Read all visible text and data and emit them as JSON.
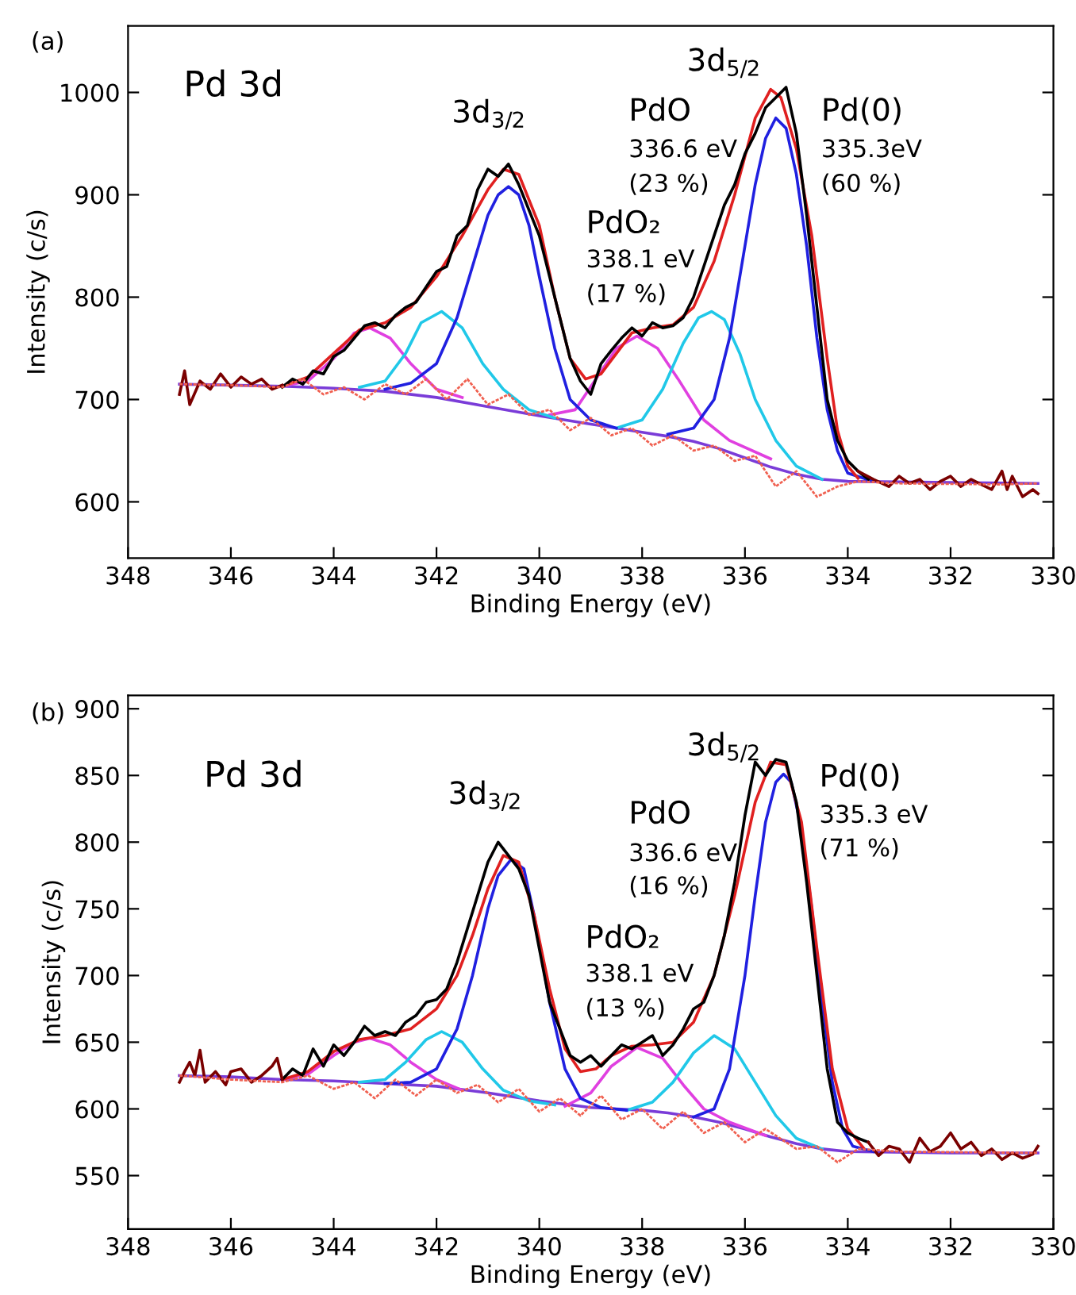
{
  "chart_data": [
    {
      "type": "line",
      "xlabel": "Binding Energy (eV)",
      "ylabel": "Intensity (c/s)",
      "xlim": [
        348,
        330
      ],
      "ylim": [
        545,
        1065
      ],
      "xticks": [
        348,
        346,
        344,
        342,
        340,
        338,
        336,
        334,
        332,
        330
      ],
      "yticks": [
        600,
        700,
        800,
        900,
        1000
      ],
      "grid": false,
      "legend": false,
      "annotations": [
        "(a)",
        "Pd 3d",
        "3d$_{3/2}$",
        "PdO₂",
        "338.1 eV",
        "(17 %)",
        "PdO",
        "336.6 eV",
        "(23 %)",
        "3d$_{5/2}$",
        "Pd(0)",
        "335.3eV",
        "(60 %)"
      ],
      "series": [
        {
          "color": "#f06050",
          "line_style": "dotted",
          "x": [
            347,
            346,
            345,
            344.6,
            344.2,
            343.8,
            343.4,
            343,
            342.6,
            342.2,
            341.8,
            341.4,
            341,
            340.6,
            340.2,
            339.8,
            339.4,
            339,
            338.6,
            338.2,
            337.8,
            337.4,
            337,
            336.6,
            336.2,
            335.8,
            335.4,
            335,
            334.6,
            334.2,
            333.8,
            333,
            331,
            330.3
          ],
          "values": [
            715,
            714,
            712,
            720,
            705,
            712,
            700,
            715,
            705,
            720,
            700,
            720,
            695,
            705,
            685,
            690,
            670,
            682,
            665,
            672,
            655,
            665,
            650,
            655,
            640,
            645,
            615,
            630,
            605,
            615,
            620,
            618,
            617,
            618
          ]
        },
        {
          "color": "#7a3cd8",
          "x": [
            347,
            346,
            345,
            344,
            343,
            342,
            341,
            340,
            339,
            338,
            337.5,
            337,
            336.5,
            336,
            335.5,
            335,
            334.5,
            334,
            332,
            330.3
          ],
          "values": [
            715,
            714,
            713,
            711,
            708,
            702,
            693,
            684,
            676,
            668,
            664,
            659,
            652,
            643,
            634,
            627,
            622,
            620,
            619,
            618
          ]
        },
        {
          "color": "#e040e0",
          "x": [
            345,
            344.5,
            344,
            343.6,
            343.3,
            342.9,
            342.5,
            342,
            341.5
          ],
          "values": [
            713,
            718,
            740,
            765,
            770,
            760,
            735,
            710,
            702
          ]
        },
        {
          "color": "#e040e0",
          "x": [
            339.8,
            339.3,
            338.9,
            338.5,
            338.1,
            337.7,
            337.3,
            336.8,
            336.3,
            335.5
          ],
          "values": [
            685,
            690,
            720,
            750,
            762,
            750,
            720,
            680,
            660,
            642
          ]
        },
        {
          "color": "#20c8e8",
          "x": [
            343.5,
            343,
            342.6,
            342.3,
            341.9,
            341.5,
            341.1,
            340.7,
            340.2,
            339.7
          ],
          "values": [
            712,
            718,
            745,
            775,
            786,
            770,
            735,
            710,
            690,
            682
          ]
        },
        {
          "color": "#20c8e8",
          "x": [
            338.5,
            338,
            337.6,
            337.2,
            336.9,
            336.65,
            336.4,
            336.1,
            335.8,
            335.4,
            335,
            334.5
          ],
          "values": [
            672,
            680,
            710,
            755,
            780,
            786,
            778,
            745,
            700,
            660,
            635,
            622
          ]
        },
        {
          "color": "#2020e0",
          "x": [
            343,
            342.5,
            342,
            341.6,
            341.3,
            341,
            340.8,
            340.6,
            340.4,
            340.2,
            340,
            339.7,
            339.4,
            339,
            338.5
          ],
          "values": [
            710,
            716,
            735,
            780,
            830,
            880,
            900,
            908,
            900,
            870,
            820,
            750,
            700,
            680,
            672
          ]
        },
        {
          "color": "#2020e0",
          "x": [
            337.5,
            337,
            336.6,
            336.3,
            336,
            335.8,
            335.6,
            335.4,
            335.2,
            335,
            334.8,
            334.6,
            334.4,
            334.2,
            334,
            333.5
          ],
          "values": [
            666,
            672,
            700,
            760,
            850,
            910,
            955,
            975,
            965,
            920,
            850,
            760,
            690,
            650,
            628,
            620
          ]
        },
        {
          "color": "#e02020",
          "x": [
            345,
            344.5,
            344,
            343.5,
            343,
            342.5,
            342,
            341.5,
            341,
            340.7,
            340.4,
            340,
            339.7,
            339.4,
            339.1,
            338.8,
            338.5,
            338.2,
            337.8,
            337.4,
            337,
            336.6,
            336.2,
            335.8,
            335.5,
            335.3,
            335,
            334.7,
            334.4,
            334.2,
            334,
            333.8
          ],
          "values": [
            713,
            722,
            745,
            768,
            775,
            790,
            820,
            860,
            905,
            925,
            920,
            870,
            800,
            740,
            720,
            725,
            745,
            765,
            770,
            773,
            790,
            835,
            900,
            975,
            1003,
            995,
            945,
            860,
            740,
            670,
            635,
            623
          ]
        },
        {
          "color": "#000000",
          "x": [
            345,
            344.8,
            344.6,
            344.4,
            344.2,
            344,
            343.8,
            343.6,
            343.4,
            343.2,
            343,
            342.8,
            342.6,
            342.4,
            342.2,
            342,
            341.8,
            341.6,
            341.4,
            341.2,
            341,
            340.8,
            340.6,
            340.4,
            340.2,
            340,
            339.8,
            339.6,
            339.4,
            339.2,
            339,
            338.8,
            338.6,
            338.4,
            338.2,
            338,
            337.8,
            337.6,
            337.4,
            337.2,
            337,
            336.8,
            336.6,
            336.4,
            336.2,
            336,
            335.8,
            335.6,
            335.4,
            335.2,
            335,
            334.8,
            334.6,
            334.4,
            334.2,
            334,
            333.8,
            333.6
          ],
          "values": [
            712,
            720,
            715,
            728,
            725,
            742,
            748,
            760,
            772,
            775,
            770,
            782,
            790,
            795,
            810,
            825,
            830,
            860,
            870,
            905,
            925,
            918,
            930,
            910,
            885,
            860,
            820,
            780,
            740,
            718,
            705,
            735,
            748,
            760,
            770,
            762,
            775,
            770,
            772,
            780,
            800,
            830,
            860,
            890,
            910,
            940,
            960,
            985,
            995,
            1005,
            960,
            880,
            790,
            700,
            660,
            640,
            630,
            622
          ]
        },
        {
          "color": "#7a0000",
          "x": [
            347,
            346.9,
            346.8,
            346.6,
            346.4,
            346.2,
            346,
            345.8,
            345.6,
            345.4,
            345.2,
            345
          ],
          "values": [
            705,
            728,
            695,
            718,
            710,
            725,
            712,
            722,
            715,
            720,
            710,
            714
          ]
        },
        {
          "color": "#7a0000",
          "x": [
            333.8,
            333.5,
            333.2,
            333,
            332.8,
            332.6,
            332.4,
            332.2,
            332,
            331.8,
            331.6,
            331.4,
            331.2,
            331,
            330.9,
            330.8,
            330.6,
            330.4,
            330.3
          ],
          "values": [
            630,
            622,
            615,
            625,
            618,
            622,
            612,
            620,
            625,
            615,
            622,
            617,
            612,
            630,
            612,
            625,
            605,
            612,
            608
          ]
        }
      ]
    },
    {
      "type": "line",
      "xlabel": "Binding Energy (eV)",
      "ylabel": "Intensity (c/s)",
      "xlim": [
        348,
        330
      ],
      "ylim": [
        510,
        910
      ],
      "xticks": [
        348,
        346,
        344,
        342,
        340,
        338,
        336,
        334,
        332,
        330
      ],
      "yticks": [
        550,
        600,
        650,
        700,
        750,
        800,
        850,
        900
      ],
      "grid": false,
      "legend": false,
      "annotations": [
        "(b)",
        "Pd 3d",
        "3d$_{3/2}$",
        "PdO₂",
        "338.1 eV",
        "(13 %)",
        "PdO",
        "336.6 eV",
        "(16 %)",
        "3d$_{5/2}$",
        "Pd(0)",
        "335.3 eV",
        "(71 %)"
      ],
      "series": [
        {
          "color": "#f06050",
          "line_style": "dotted",
          "x": [
            347,
            346,
            345,
            344.5,
            344,
            343.6,
            343.2,
            342.8,
            342.4,
            342,
            341.6,
            341.2,
            340.8,
            340.4,
            340,
            339.6,
            339.2,
            338.8,
            338.4,
            338,
            337.6,
            337.2,
            336.8,
            336.4,
            336,
            335.6,
            335,
            334.6,
            334.2,
            333.8,
            333,
            330.3
          ],
          "values": [
            625,
            622,
            620,
            625,
            615,
            620,
            608,
            622,
            610,
            622,
            612,
            618,
            605,
            615,
            598,
            608,
            595,
            610,
            592,
            600,
            585,
            598,
            582,
            590,
            575,
            585,
            570,
            572,
            560,
            570,
            568,
            567
          ]
        },
        {
          "color": "#7a3cd8",
          "x": [
            347,
            346,
            345,
            344,
            343,
            342,
            341,
            340,
            339,
            338,
            337.5,
            337,
            336.5,
            336,
            335.5,
            335,
            334.5,
            334,
            332,
            330.3
          ],
          "values": [
            625,
            624,
            622,
            621,
            619,
            617,
            612,
            606,
            601,
            599,
            597,
            594,
            590,
            585,
            579,
            574,
            570,
            568,
            567,
            567
          ]
        },
        {
          "color": "#e040e0",
          "x": [
            345,
            344.5,
            344,
            343.6,
            343.3,
            342.9,
            342.5,
            342,
            341.5
          ],
          "values": [
            622,
            626,
            640,
            650,
            653,
            648,
            635,
            622,
            614
          ]
        },
        {
          "color": "#e040e0",
          "x": [
            339.5,
            339,
            338.6,
            338.1,
            337.6,
            337.2,
            336.8,
            336.3,
            335.6
          ],
          "values": [
            602,
            612,
            632,
            646,
            638,
            618,
            600,
            590,
            580
          ]
        },
        {
          "color": "#20c8e8",
          "x": [
            343.5,
            343,
            342.6,
            342.2,
            341.9,
            341.5,
            341.1,
            340.7,
            340.2,
            339.7
          ],
          "values": [
            620,
            622,
            635,
            652,
            658,
            650,
            630,
            614,
            606,
            603
          ]
        },
        {
          "color": "#20c8e8",
          "x": [
            338.3,
            337.8,
            337.4,
            337,
            336.6,
            336.2,
            335.8,
            335.4,
            335,
            334.5
          ],
          "values": [
            599,
            605,
            620,
            642,
            655,
            645,
            620,
            595,
            578,
            570
          ]
        },
        {
          "color": "#2020e0",
          "x": [
            343,
            342.5,
            342,
            341.6,
            341.3,
            341,
            340.8,
            340.55,
            340.3,
            340.1,
            339.8,
            339.5,
            339.2,
            338.8,
            338.3
          ],
          "values": [
            619,
            620,
            630,
            660,
            700,
            750,
            775,
            787,
            780,
            745,
            680,
            630,
            608,
            601,
            599
          ]
        },
        {
          "color": "#2020e0",
          "x": [
            337,
            336.6,
            336.3,
            336,
            335.8,
            335.6,
            335.4,
            335.25,
            335.1,
            334.9,
            334.7,
            334.5,
            334.3,
            334.1,
            333.9,
            333.5
          ],
          "values": [
            594,
            600,
            630,
            700,
            760,
            815,
            845,
            851,
            845,
            810,
            750,
            680,
            620,
            585,
            572,
            568
          ]
        },
        {
          "color": "#e02020",
          "x": [
            345,
            344.5,
            344,
            343.5,
            343,
            342.5,
            342,
            341.6,
            341.3,
            341,
            340.7,
            340.4,
            340.1,
            339.8,
            339.5,
            339.2,
            338.9,
            338.6,
            338.2,
            337.8,
            337.4,
            337,
            336.6,
            336.2,
            335.8,
            335.5,
            335.2,
            334.9,
            334.6,
            334.3,
            334,
            333.7
          ],
          "values": [
            622,
            628,
            643,
            652,
            655,
            660,
            675,
            700,
            730,
            765,
            790,
            785,
            745,
            690,
            645,
            628,
            630,
            640,
            647,
            648,
            650,
            665,
            700,
            760,
            830,
            860,
            858,
            815,
            720,
            630,
            585,
            571
          ]
        },
        {
          "color": "#000000",
          "x": [
            345,
            344.8,
            344.6,
            344.4,
            344.2,
            344,
            343.8,
            343.6,
            343.4,
            343.2,
            343,
            342.8,
            342.6,
            342.4,
            342.2,
            342,
            341.8,
            341.6,
            341.4,
            341.2,
            341,
            340.8,
            340.6,
            340.4,
            340.2,
            340,
            339.8,
            339.6,
            339.4,
            339.2,
            339,
            338.8,
            338.6,
            338.4,
            338.2,
            338,
            337.8,
            337.6,
            337.4,
            337.2,
            337,
            336.8,
            336.6,
            336.4,
            336.2,
            336,
            335.8,
            335.6,
            335.4,
            335.2,
            335,
            334.8,
            334.6,
            334.4,
            334.2,
            334,
            333.8,
            333.6
          ],
          "values": [
            622,
            630,
            625,
            645,
            632,
            648,
            640,
            650,
            662,
            655,
            658,
            655,
            665,
            670,
            680,
            682,
            690,
            710,
            735,
            760,
            785,
            800,
            790,
            780,
            760,
            720,
            680,
            660,
            640,
            635,
            640,
            632,
            640,
            648,
            645,
            650,
            655,
            640,
            648,
            660,
            675,
            680,
            700,
            730,
            770,
            820,
            860,
            850,
            862,
            860,
            830,
            770,
            700,
            630,
            590,
            582,
            578,
            575
          ]
        },
        {
          "color": "#7a0000",
          "x": [
            347,
            346.9,
            346.8,
            346.7,
            346.6,
            346.5,
            346.3,
            346.1,
            346,
            345.8,
            345.6,
            345.4,
            345.2,
            345.1,
            345
          ],
          "values": [
            620,
            628,
            635,
            625,
            644,
            620,
            628,
            618,
            628,
            630,
            620,
            625,
            632,
            638,
            622
          ]
        },
        {
          "color": "#7a0000",
          "x": [
            333.6,
            333.4,
            333.2,
            333,
            332.8,
            332.6,
            332.4,
            332.2,
            332,
            331.8,
            331.6,
            331.4,
            331.2,
            331,
            330.8,
            330.6,
            330.4,
            330.3
          ],
          "values": [
            575,
            565,
            572,
            570,
            560,
            578,
            568,
            572,
            582,
            570,
            575,
            565,
            570,
            562,
            567,
            563,
            566,
            572
          ]
        }
      ]
    }
  ]
}
